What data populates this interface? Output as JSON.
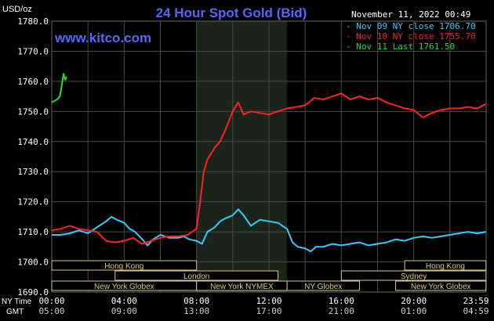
{
  "header": {
    "title": "24 Hour Spot Gold (Bid)",
    "date": "November 11, 2022 00:49",
    "unit": "USD/oz",
    "site": "www.kitco.com"
  },
  "legend": [
    {
      "label": "Nov 09 NY close 1706.70",
      "color": "#33ccff"
    },
    {
      "label": "Nov 10 NY close 1755.70",
      "color": "#ff2222"
    },
    {
      "label": "Nov 11 Last 1761.50",
      "color": "#22dd22"
    }
  ],
  "markets": [
    {
      "label": "Hong Kong",
      "start": 0.0,
      "end": 8.0,
      "row": 0
    },
    {
      "label": "London",
      "start": 3.5,
      "end": 12.5,
      "row": 1
    },
    {
      "label": "New York Globex",
      "start": 0.0,
      "end": 8.0,
      "row": 2
    },
    {
      "label": "New York NYMEX",
      "start": 8.0,
      "end": 13.0,
      "row": 2
    },
    {
      "label": "NY Globex",
      "start": 13.0,
      "end": 17.0,
      "row": 2
    },
    {
      "label": "Hong Kong",
      "start": 19.5,
      "end": 23.99,
      "row": 0
    },
    {
      "label": "Sydney",
      "start": 16.0,
      "end": 23.99,
      "row": 1
    },
    {
      "label": "New York Globex",
      "start": 19.0,
      "end": 23.99,
      "row": 2
    }
  ],
  "time_axis": {
    "tz1_label": "NY Time",
    "tz2_label": "GMT",
    "ny_ticks": [
      "00:00",
      "04:00",
      "08:00",
      "12:00",
      "16:00",
      "20:00",
      "23:59"
    ],
    "gmt_ticks": [
      "05:00",
      "09:00",
      "13:00",
      "17:00",
      "21:00",
      "01:00",
      "04:59"
    ]
  },
  "colors": {
    "background": "#000000",
    "grid": "#4a4a4a",
    "highlight": "#1b241b",
    "title": "#5566ff",
    "text": "#ffffff",
    "market_box": "#d8c888"
  },
  "chart_data": {
    "type": "line",
    "title": "24 Hour Spot Gold (Bid)",
    "ylabel": "USD/oz",
    "ylim": [
      1690,
      1780
    ],
    "xlim": [
      0,
      24
    ],
    "grid": true,
    "y_ticks": [
      "1780.0",
      "1770.0",
      "1760.0",
      "1750.0",
      "1740.0",
      "1730.0",
      "1720.0",
      "1710.0",
      "1700.0",
      "1690.0"
    ],
    "highlight_range": [
      8,
      13
    ],
    "series": [
      {
        "name": "Nov 09 NY close 1706.70",
        "color": "#33ccff",
        "x": [
          0.0,
          0.5,
          1.0,
          1.5,
          2.0,
          2.5,
          3.0,
          3.3,
          3.6,
          4.0,
          4.3,
          4.6,
          5.0,
          5.3,
          5.6,
          6.0,
          6.5,
          7.0,
          7.3,
          7.6,
          8.0,
          8.3,
          8.6,
          9.0,
          9.3,
          9.6,
          10.0,
          10.3,
          10.6,
          11.0,
          11.5,
          12.0,
          12.5,
          13.0,
          13.3,
          13.6,
          14.0,
          14.3,
          14.6,
          15.0,
          15.5,
          16.0,
          16.5,
          17.0,
          17.5,
          18.0,
          18.5,
          19.0,
          19.5,
          20.0,
          20.5,
          21.0,
          21.5,
          22.0,
          22.5,
          23.0,
          23.5,
          23.99
        ],
        "y": [
          1709.0,
          1709.0,
          1709.5,
          1710.5,
          1709.5,
          1711.5,
          1713.5,
          1715.0,
          1714.0,
          1713.0,
          1711.0,
          1710.0,
          1707.5,
          1705.5,
          1707.5,
          1709.0,
          1708.0,
          1708.0,
          1708.5,
          1707.5,
          1707.0,
          1706.0,
          1710.0,
          1711.5,
          1713.5,
          1714.5,
          1715.5,
          1717.5,
          1715.5,
          1712.0,
          1714.0,
          1713.5,
          1713.0,
          1711.0,
          1706.5,
          1705.0,
          1704.5,
          1703.5,
          1705.0,
          1705.0,
          1706.0,
          1705.5,
          1706.0,
          1706.5,
          1705.5,
          1706.0,
          1706.5,
          1707.5,
          1707.0,
          1708.0,
          1708.5,
          1708.0,
          1708.5,
          1709.0,
          1709.5,
          1710.0,
          1709.5,
          1710.0
        ]
      },
      {
        "name": "Nov 10 NY close 1755.70",
        "color": "#ff2222",
        "x": [
          0.0,
          0.5,
          1.0,
          1.5,
          2.0,
          2.5,
          3.0,
          3.5,
          4.0,
          4.5,
          5.0,
          5.5,
          6.0,
          6.5,
          7.0,
          7.5,
          8.0,
          8.2,
          8.4,
          8.6,
          8.8,
          9.0,
          9.3,
          9.6,
          10.0,
          10.3,
          10.6,
          11.0,
          11.5,
          12.0,
          12.5,
          13.0,
          13.5,
          14.0,
          14.5,
          15.0,
          15.5,
          16.0,
          16.5,
          17.0,
          17.5,
          18.0,
          18.5,
          19.0,
          19.5,
          20.0,
          20.5,
          21.0,
          21.5,
          22.0,
          22.5,
          23.0,
          23.5,
          23.99
        ],
        "y": [
          1710.5,
          1711.0,
          1712.0,
          1711.0,
          1710.5,
          1710.0,
          1707.0,
          1706.5,
          1707.0,
          1708.0,
          1706.0,
          1707.0,
          1708.0,
          1708.5,
          1708.5,
          1709.0,
          1711.0,
          1720.0,
          1730.0,
          1734.0,
          1736.0,
          1738.0,
          1740.0,
          1744.0,
          1750.0,
          1753.0,
          1749.0,
          1750.0,
          1749.5,
          1749.0,
          1750.0,
          1751.0,
          1751.5,
          1752.0,
          1754.5,
          1754.0,
          1755.0,
          1756.0,
          1754.0,
          1755.0,
          1754.0,
          1754.5,
          1753.0,
          1752.0,
          1751.0,
          1750.5,
          1748.0,
          1749.5,
          1750.5,
          1751.0,
          1751.0,
          1751.5,
          1751.0,
          1752.5
        ]
      },
      {
        "name": "Nov 11 Last 1761.50",
        "color": "#22dd22",
        "x": [
          0.0,
          0.15,
          0.3,
          0.45,
          0.55,
          0.65,
          0.75,
          0.82
        ],
        "y": [
          1753.0,
          1753.5,
          1754.0,
          1755.0,
          1758.5,
          1762.5,
          1760.5,
          1761.5
        ]
      }
    ]
  }
}
